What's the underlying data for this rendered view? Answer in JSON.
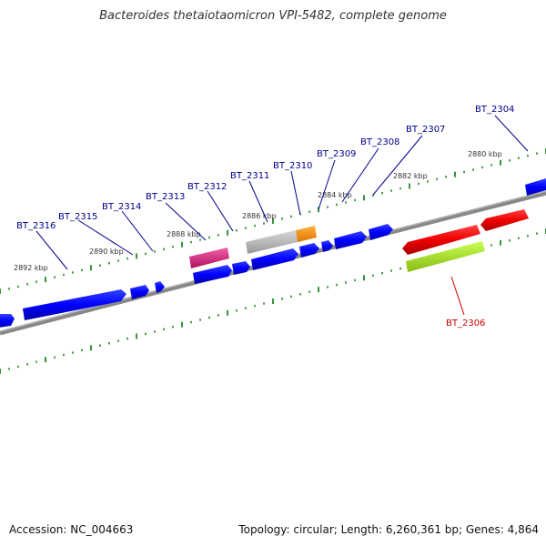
{
  "title": "Bacteroides thetaiotaomicron VPI-5482, complete genome",
  "footer": {
    "accession": "Accession: NC_004663",
    "summary": "Topology: circular; Length: 6,260,361 bp; Genes: 4,864"
  },
  "colors": {
    "gene_blue": "#0000ff",
    "gene_red": "#ff0000",
    "gene_pink": "#e8208a",
    "gene_gray": "#bbbbbb",
    "gene_orange": "#ff9900",
    "gene_lime": "#aaee22",
    "tick_green": "#228822",
    "label_blue": "#00008b",
    "label_red": "#cc0000"
  },
  "kbp_labels": [
    "2892 kbp",
    "2890 kbp",
    "2888 kbp",
    "2886 kbp",
    "2884 kbp",
    "2882 kbp",
    "2880 kbp"
  ],
  "gene_labels": [
    {
      "name": "BT_2316",
      "color": "label_blue"
    },
    {
      "name": "BT_2315",
      "color": "label_blue"
    },
    {
      "name": "BT_2314",
      "color": "label_blue"
    },
    {
      "name": "BT_2313",
      "color": "label_blue"
    },
    {
      "name": "BT_2312",
      "color": "label_blue"
    },
    {
      "name": "BT_2311",
      "color": "label_blue"
    },
    {
      "name": "BT_2310",
      "color": "label_blue"
    },
    {
      "name": "BT_2309",
      "color": "label_blue"
    },
    {
      "name": "BT_2308",
      "color": "label_blue"
    },
    {
      "name": "BT_2307",
      "color": "label_blue"
    },
    {
      "name": "BT_2304",
      "color": "label_blue"
    },
    {
      "name": "BT_2306",
      "color": "label_red"
    }
  ]
}
